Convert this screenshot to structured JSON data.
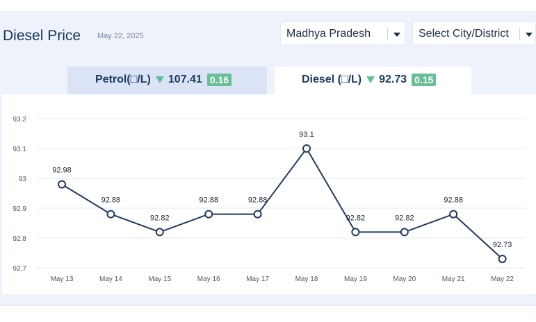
{
  "header": {
    "title": "Diesel Price",
    "date": "May 22, 2025"
  },
  "filters": {
    "state": "Madhya Pradesh",
    "city": "Select City/District"
  },
  "tabs": [
    {
      "fuel_label": "Petrol(□/L)",
      "price": "107.41",
      "change": "0.16",
      "direction": "down",
      "active": false
    },
    {
      "fuel_label": "Diesel (□/L)",
      "price": "92.73",
      "change": "0.15",
      "direction": "down",
      "active": true
    }
  ],
  "colors": {
    "line": "#1f3a5f",
    "down_indicator": "#5fbf9a",
    "badge": "#67bf95",
    "panel_bg": "#eef2fa",
    "inactive_tab": "#dae4f6"
  },
  "chart_data": {
    "type": "line",
    "categories": [
      "May 13",
      "May 14",
      "May 15",
      "May 16",
      "May 17",
      "May 18",
      "May 19",
      "May 20",
      "May 21",
      "May 22"
    ],
    "values": [
      92.98,
      92.88,
      92.82,
      92.88,
      92.88,
      93.1,
      92.82,
      92.82,
      92.88,
      92.73
    ],
    "data_labels": [
      "92.98",
      "92.88",
      "92.82",
      "92.88",
      "92.88",
      "93.1",
      "92.82",
      "92.82",
      "92.88",
      "92.73"
    ],
    "yticks": [
      "92.7",
      "92.8",
      "92.9",
      "93",
      "93.1",
      "93.2"
    ],
    "ylim": [
      92.7,
      93.2
    ],
    "grid": true,
    "legend": "none"
  }
}
